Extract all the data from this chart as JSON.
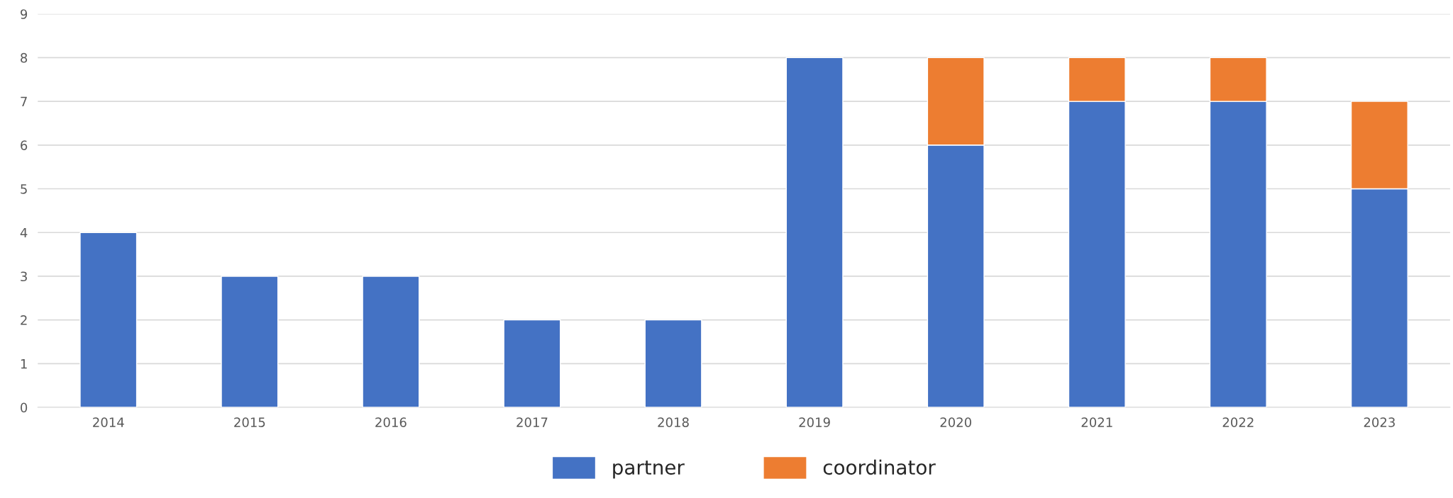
{
  "chart_data": {
    "type": "bar",
    "stacked": true,
    "categories": [
      "2014",
      "2015",
      "2016",
      "2017",
      "2018",
      "2019",
      "2020",
      "2021",
      "2022",
      "2023"
    ],
    "series": [
      {
        "name": "partner",
        "color": "#4472c4",
        "values": [
          4,
          3,
          3,
          2,
          2,
          8,
          6,
          7,
          7,
          5
        ]
      },
      {
        "name": "coordinator",
        "color": "#ed7d31",
        "values": [
          null,
          null,
          null,
          null,
          null,
          null,
          2,
          1,
          1,
          2
        ]
      }
    ],
    "ylim": [
      0,
      9
    ],
    "yticks": [
      0,
      1,
      2,
      3,
      4,
      5,
      6,
      7,
      8,
      9
    ],
    "grid": "y",
    "legend": "bottom"
  }
}
